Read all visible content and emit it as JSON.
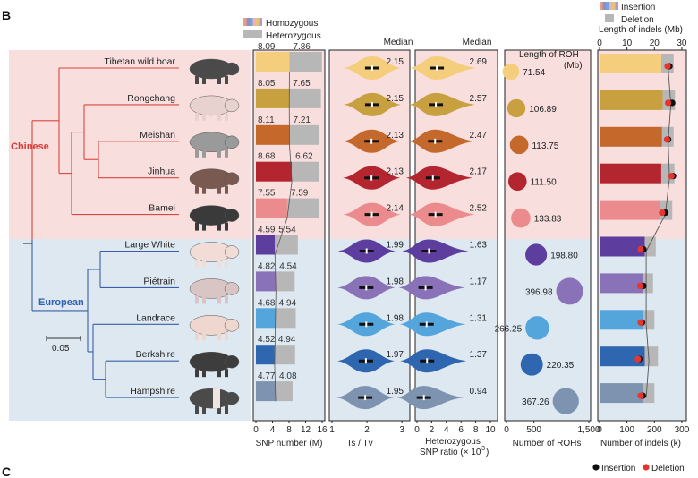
{
  "figure": {
    "panel_b_label": "B",
    "panel_c_label": "C",
    "group_chinese": "Chinese",
    "group_european": "European",
    "scale_bar_label": "0.05",
    "colors": {
      "chinese_bg": "#f9dede",
      "european_bg": "#dde8f0",
      "chinese_tree": "#d9473f",
      "european_tree": "#3a5fa8",
      "chinese_label": "#d63a34",
      "european_label": "#3161b0"
    }
  },
  "breeds": [
    {
      "name": "Tibetan wild boar",
      "group": "Chinese",
      "color": "#f4ce7c"
    },
    {
      "name": "Rongchang",
      "group": "Chinese",
      "color": "#c9a03f"
    },
    {
      "name": "Meishan",
      "group": "Chinese",
      "color": "#c4682c"
    },
    {
      "name": "Jinhua",
      "group": "Chinese",
      "color": "#b3262f"
    },
    {
      "name": "Bamei",
      "group": "Chinese",
      "color": "#ec8b8d"
    },
    {
      "name": "Large White",
      "group": "European",
      "color": "#5d3e9e"
    },
    {
      "name": "Piétrain",
      "group": "European",
      "color": "#8a72b9"
    },
    {
      "name": "Landrace",
      "group": "European",
      "color": "#53a5dc"
    },
    {
      "name": "Berkshire",
      "group": "European",
      "color": "#2f66b0"
    },
    {
      "name": "Hampshire",
      "group": "European",
      "color": "#7e93af"
    }
  ],
  "chart_data": [
    {
      "type": "bar",
      "id": "snp_number",
      "xlabel": "SNP number (M)",
      "xlim": [
        0,
        16
      ],
      "xticks": [
        0,
        4,
        8,
        12,
        16
      ],
      "legend": [
        "Homozygous",
        "Heterozygous"
      ],
      "categories": [
        "Tibetan wild boar",
        "Rongchang",
        "Meishan",
        "Jinhua",
        "Bamei",
        "Large White",
        "Piétrain",
        "Landrace",
        "Berkshire",
        "Hampshire"
      ],
      "series": [
        {
          "name": "Homozygous",
          "values": [
            8.09,
            8.05,
            8.11,
            8.68,
            7.55,
            4.59,
            4.82,
            4.68,
            4.52,
            4.77
          ]
        },
        {
          "name": "Heterozygous",
          "values": [
            7.86,
            7.65,
            7.21,
            6.62,
            7.59,
            5.54,
            4.54,
            4.94,
            4.94,
            4.08
          ]
        }
      ],
      "labels": {
        "homozygous": [
          "8.09",
          "8.05",
          "8.11",
          "8.68",
          "7.55",
          "4.59",
          "4.82",
          "4.68",
          "4.52",
          "4.77"
        ],
        "heterozygous": [
          "7.86",
          "7.65",
          "7.21",
          "6.62",
          "7.59",
          "5.54",
          "4.54",
          "4.94",
          "4.94",
          "4.08"
        ]
      }
    },
    {
      "type": "violin",
      "id": "ts_tv",
      "xlabel": "Ts / Tv",
      "header": "Median",
      "xlim": [
        1,
        3.15
      ],
      "xticks": [
        1,
        2,
        3
      ],
      "medians": [
        2.15,
        2.15,
        2.13,
        2.13,
        2.14,
        1.99,
        1.98,
        1.98,
        1.97,
        1.95
      ],
      "median_labels": [
        "2.15",
        "2.15",
        "2.13",
        "2.13",
        "2.14",
        "1.99",
        "1.98",
        "1.98",
        "1.97",
        "1.95"
      ]
    },
    {
      "type": "violin",
      "id": "het_snp_ratio",
      "xlabel": "Heterozygous",
      "xlabel2": "SNP ratio (× 10",
      "xlabel_exp": "−3",
      "header": "Median",
      "xlim": [
        0,
        10
      ],
      "xticks": [
        0,
        2,
        4,
        6,
        8,
        10
      ],
      "medians": [
        2.69,
        2.57,
        2.47,
        2.17,
        2.52,
        1.63,
        1.17,
        1.31,
        1.37,
        0.94
      ],
      "median_labels": [
        "2.69",
        "2.57",
        "2.47",
        "2.17",
        "2.52",
        "1.63",
        "1.17",
        "1.31",
        "1.37",
        "0.94"
      ]
    },
    {
      "type": "scatter",
      "id": "roh",
      "xlabel": "Number of ROHs",
      "size_legend_title": "Length of ROH",
      "size_legend_unit": "(Mb)",
      "xlim": [
        0,
        1500
      ],
      "xticks": [
        0,
        500,
        1500
      ],
      "xtick_labels": [
        "0",
        "500",
        "1,500"
      ],
      "x": [
        80,
        180,
        230,
        200,
        260,
        540,
        1150,
        560,
        460,
        1080
      ],
      "size_values": [
        71.54,
        106.89,
        113.75,
        111.5,
        133.83,
        198.8,
        396.98,
        266.25,
        220.35,
        367.26
      ],
      "size_labels": [
        "71.54",
        "106.89",
        "113.75",
        "111.50",
        "133.83",
        "198.80",
        "396.98",
        "266.25",
        "220.35",
        "367.26"
      ]
    },
    {
      "type": "bar",
      "id": "indels",
      "xlabel": "Number of indels (k)",
      "xlim": [
        0,
        310
      ],
      "xticks": [
        0,
        100,
        200,
        300
      ],
      "top_axis_label": "Length of indels (Mb)",
      "top_xlim": [
        0,
        31
      ],
      "top_xticks": [
        0,
        10,
        20,
        30
      ],
      "legend_top": [
        "Insertion",
        "Deletion"
      ],
      "legend_bottom": [
        "Insertion",
        "Deletion"
      ],
      "bar_insertion_k": [
        225,
        230,
        228,
        225,
        220,
        165,
        160,
        160,
        165,
        160
      ],
      "bar_deletion_k": [
        45,
        45,
        42,
        48,
        45,
        40,
        35,
        40,
        48,
        40
      ],
      "number_insertion_k": [
        255,
        265,
        250,
        268,
        240,
        160,
        160,
        155,
        145,
        158
      ],
      "number_deletion_k": [
        248,
        250,
        246,
        262,
        228,
        150,
        148,
        150,
        140,
        150
      ],
      "length_line_mb": [
        25,
        26,
        25,
        25.5,
        24,
        17,
        17,
        17,
        18,
        17
      ]
    }
  ]
}
